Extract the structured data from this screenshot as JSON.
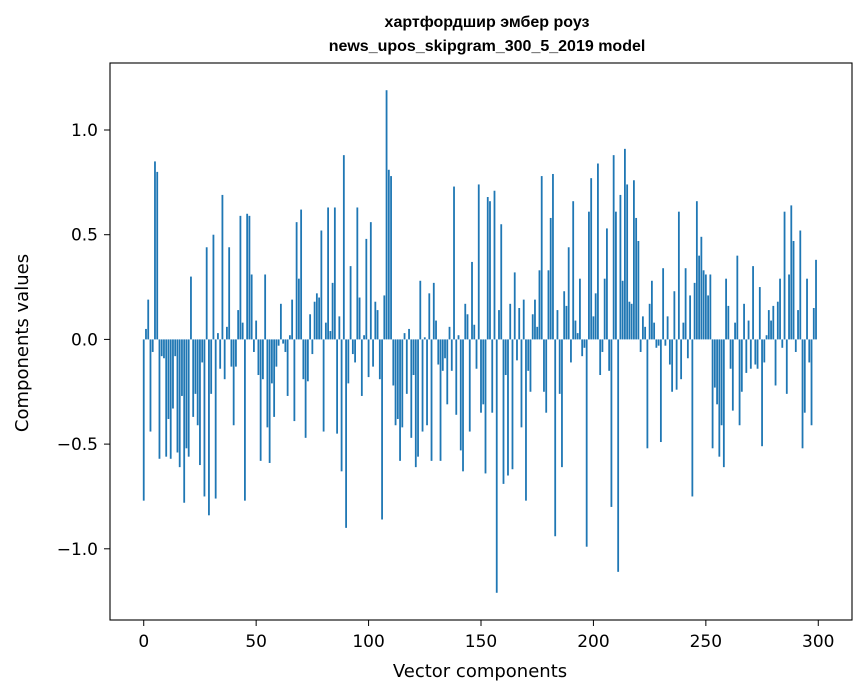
{
  "chart_data": {
    "type": "bar",
    "title": "хартфордшир эмбер роуз",
    "subtitle": "news_upos_skipgram_300_5_2019 model",
    "xlabel": "Vector components",
    "ylabel": "Components values",
    "xlim": [
      -15,
      315
    ],
    "ylim": [
      -1.34,
      1.32
    ],
    "xticks": [
      0,
      50,
      100,
      150,
      200,
      250,
      300
    ],
    "xtick_labels": [
      "0",
      "50",
      "100",
      "150",
      "200",
      "250",
      "300"
    ],
    "yticks": [
      -1.0,
      -0.5,
      0.0,
      0.5,
      1.0
    ],
    "ytick_labels": [
      "−1.0",
      "−0.5",
      "0.0",
      "0.5",
      "1.0"
    ],
    "bar_color": "#1f77b4",
    "grid": false,
    "values": [
      -0.77,
      0.05,
      0.19,
      -0.44,
      -0.06,
      0.85,
      0.8,
      -0.57,
      -0.08,
      -0.09,
      -0.56,
      -0.38,
      -0.57,
      -0.33,
      -0.08,
      -0.54,
      -0.61,
      -0.27,
      -0.78,
      -0.52,
      -0.56,
      0.3,
      -0.37,
      -0.26,
      -0.41,
      -0.6,
      -0.11,
      -0.75,
      0.44,
      -0.84,
      -0.26,
      0.5,
      -0.76,
      0.03,
      -0.14,
      0.69,
      -0.19,
      0.06,
      0.44,
      -0.13,
      -0.41,
      -0.13,
      0.14,
      0.59,
      0.08,
      -0.77,
      0.6,
      0.59,
      0.31,
      -0.06,
      0.09,
      -0.17,
      -0.58,
      -0.19,
      0.31,
      -0.42,
      -0.59,
      -0.21,
      -0.37,
      -0.13,
      -0.03,
      0.17,
      -0.02,
      -0.06,
      -0.27,
      0.02,
      0.19,
      -0.39,
      0.56,
      0.29,
      0.62,
      -0.19,
      -0.47,
      -0.2,
      0.12,
      -0.07,
      0.18,
      0.22,
      0.2,
      0.52,
      -0.44,
      0.08,
      0.63,
      0.04,
      0.27,
      0.63,
      -0.45,
      0.11,
      -0.63,
      0.88,
      -0.9,
      -0.21,
      0.35,
      -0.07,
      -0.11,
      0.63,
      0.2,
      -0.27,
      0.02,
      0.48,
      -0.18,
      0.56,
      -0.13,
      0.18,
      0.14,
      -0.19,
      -0.86,
      0.21,
      1.19,
      0.81,
      0.78,
      -0.22,
      -0.41,
      -0.38,
      -0.58,
      -0.42,
      0.03,
      -0.26,
      0.05,
      -0.47,
      -0.17,
      -0.61,
      -0.56,
      0.28,
      -0.44,
      0.01,
      -0.41,
      0.22,
      -0.58,
      0.27,
      0.09,
      -0.12,
      -0.58,
      -0.15,
      -0.09,
      -0.31,
      0.06,
      -0.15,
      0.73,
      -0.36,
      0.02,
      -0.53,
      -0.63,
      0.17,
      0.12,
      -0.44,
      0.37,
      0.07,
      -0.14,
      0.74,
      -0.35,
      -0.31,
      -0.64,
      0.68,
      0.66,
      -0.35,
      0.71,
      -1.21,
      0.14,
      0.55,
      -0.69,
      -0.17,
      -0.65,
      0.17,
      -0.62,
      0.32,
      -0.1,
      0.15,
      -0.42,
      0.19,
      -0.77,
      -0.15,
      -0.25,
      0.12,
      0.19,
      0.06,
      0.33,
      0.78,
      -0.25,
      -0.35,
      0.33,
      0.58,
      0.79,
      -0.94,
      0.14,
      -0.26,
      -0.61,
      0.23,
      0.16,
      0.44,
      -0.11,
      0.66,
      0.09,
      0.03,
      0.29,
      -0.08,
      -0.04,
      -0.99,
      0.61,
      0.77,
      0.11,
      0.22,
      0.84,
      -0.17,
      -0.06,
      0.29,
      0.53,
      -0.15,
      -0.8,
      0.88,
      0.61,
      -1.11,
      0.69,
      0.28,
      0.91,
      0.74,
      0.18,
      0.17,
      0.76,
      0.58,
      0.47,
      -0.06,
      0.11,
      0.06,
      -0.52,
      0.17,
      0.28,
      0.08,
      -0.04,
      -0.03,
      -0.49,
      0.34,
      -0.03,
      0.11,
      -0.12,
      -0.25,
      0.23,
      -0.24,
      0.61,
      -0.19,
      0.08,
      0.34,
      -0.09,
      0.21,
      -0.75,
      0.27,
      0.66,
      0.4,
      0.49,
      0.33,
      0.31,
      0.21,
      0.31,
      -0.52,
      -0.23,
      -0.31,
      -0.56,
      -0.41,
      -0.61,
      0.29,
      0.16,
      -0.14,
      -0.34,
      0.08,
      0.4,
      -0.41,
      -0.25,
      0.17,
      -0.16,
      0.09,
      -0.14,
      0.35,
      -0.12,
      -0.14,
      0.25,
      -0.51,
      -0.11,
      0.02,
      0.14,
      0.09,
      0.16,
      -0.22,
      0.18,
      0.29,
      -0.04,
      0.61,
      -0.26,
      0.31,
      0.64,
      0.47,
      -0.06,
      0.14,
      0.52,
      -0.52,
      -0.35,
      0.29,
      -0.11,
      -0.41,
      0.15,
      0.38
    ]
  }
}
